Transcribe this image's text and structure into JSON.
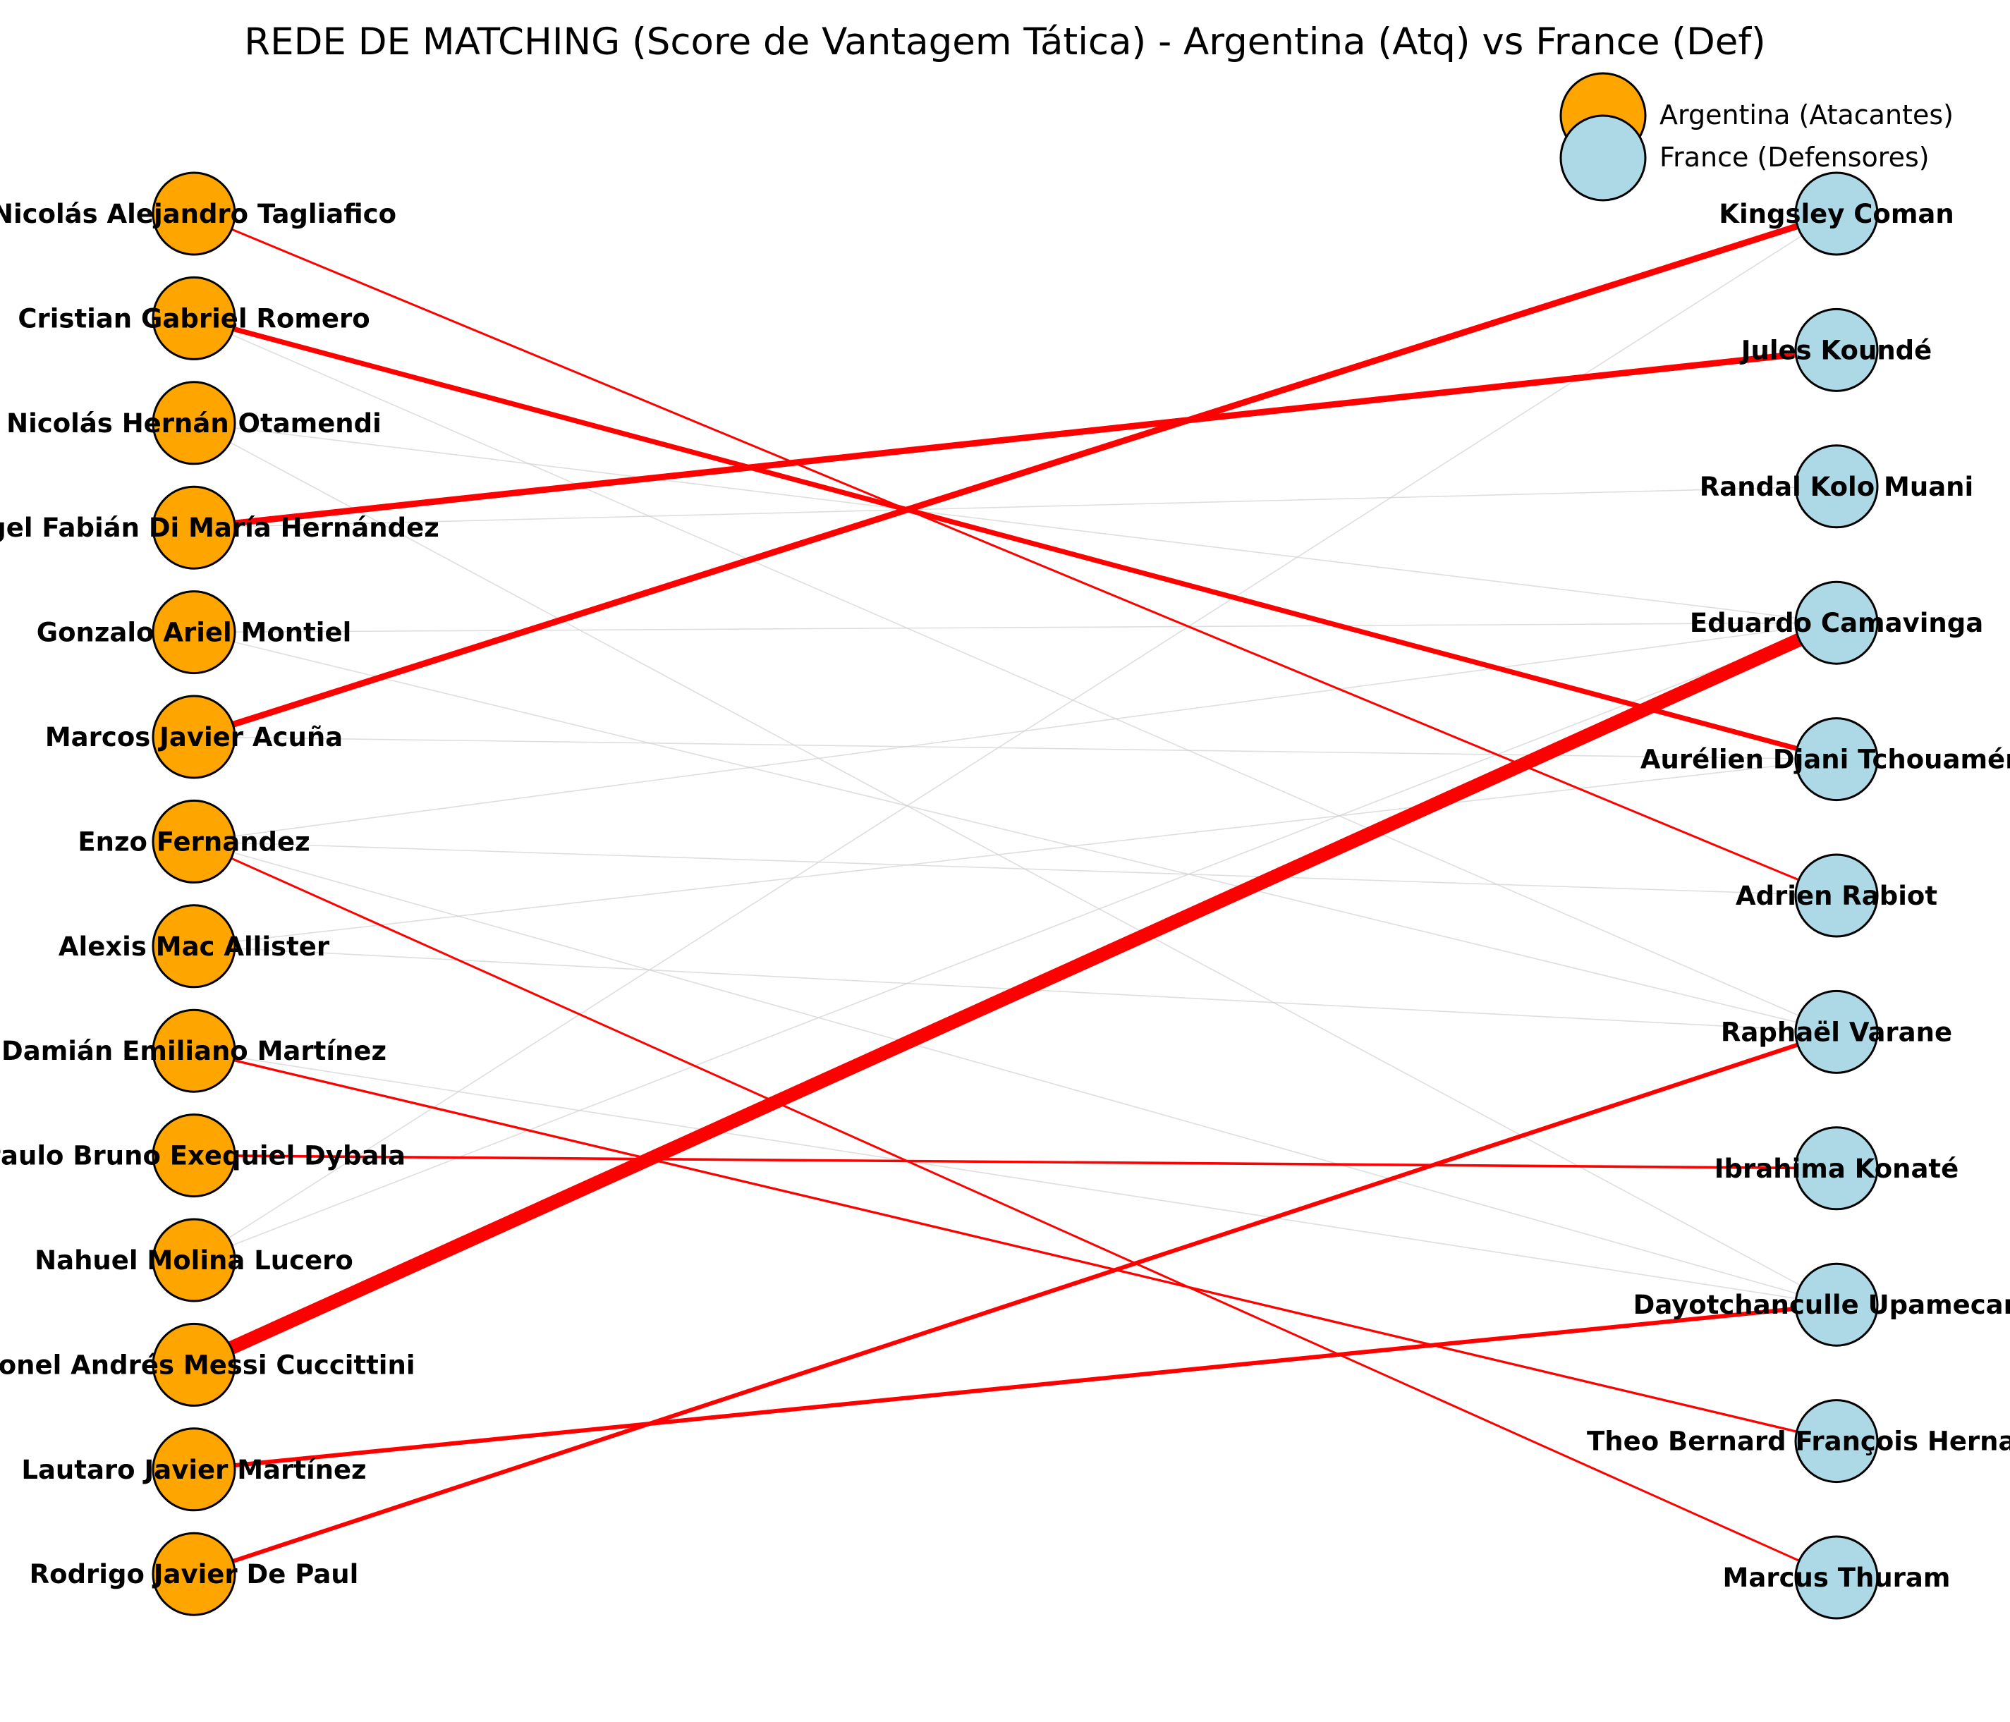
{
  "title": "REDE DE MATCHING (Score de Vantagem Tática) - Argentina (Atq) vs France (Def)",
  "legend": {
    "attack_label": "Argentina (Atacantes)",
    "defense_label": "France (Defensores)"
  },
  "colors": {
    "attack_node": "#FFA500",
    "defense_node": "#ADD8E6",
    "node_outline": "#000000",
    "highlight_edge": "#FF0000",
    "faint_edge": "#d0d0d0"
  },
  "attackers": [
    "Nicolás Alejandro Tagliafico",
    "Cristian Gabriel Romero",
    "Nicolás Hernán Otamendi",
    "Ángel Fabián Di María Hernández",
    "Gonzalo Ariel Montiel",
    "Marcos Javier Acuña",
    "Enzo Fernandez",
    "Alexis Mac Allister",
    "Damián Emiliano Martínez",
    "Paulo Bruno Exequiel Dybala",
    "Nahuel Molina Lucero",
    "Lionel Andrés Messi Cuccittini",
    "Lautaro Javier Martínez",
    "Rodrigo Javier De Paul"
  ],
  "defenders": [
    "Kingsley Coman",
    "Jules Koundé",
    "Randal Kolo Muani",
    "Eduardo Camavinga",
    "Aurélien Djani Tchouaméni",
    "Adrien Rabiot",
    "Raphaël Varane",
    "Ibrahima Konaté",
    "Dayotchanculle Upamecano",
    "Theo Bernard François Hernandez",
    "Marcus Thuram"
  ],
  "matching_edges": [
    {
      "from": 0,
      "to": 5,
      "score": 1.0
    },
    {
      "from": 1,
      "to": 4,
      "score": 2.4
    },
    {
      "from": 3,
      "to": 1,
      "score": 3.0
    },
    {
      "from": 5,
      "to": 0,
      "score": 3.0
    },
    {
      "from": 6,
      "to": 10,
      "score": 1.0
    },
    {
      "from": 8,
      "to": 9,
      "score": 1.1
    },
    {
      "from": 9,
      "to": 7,
      "score": 1.2
    },
    {
      "from": 11,
      "to": 3,
      "score": 6.5
    },
    {
      "from": 12,
      "to": 8,
      "score": 2.0
    },
    {
      "from": 13,
      "to": 6,
      "score": 2.0
    }
  ],
  "other_edges": [
    {
      "from": 1,
      "to": 6
    },
    {
      "from": 2,
      "to": 3
    },
    {
      "from": 2,
      "to": 8
    },
    {
      "from": 3,
      "to": 2
    },
    {
      "from": 4,
      "to": 3
    },
    {
      "from": 4,
      "to": 6
    },
    {
      "from": 5,
      "to": 4
    },
    {
      "from": 6,
      "to": 3
    },
    {
      "from": 6,
      "to": 5
    },
    {
      "from": 6,
      "to": 8
    },
    {
      "from": 7,
      "to": 4
    },
    {
      "from": 7,
      "to": 6
    },
    {
      "from": 8,
      "to": 8
    },
    {
      "from": 10,
      "to": 0
    },
    {
      "from": 10,
      "to": 3
    }
  ]
}
